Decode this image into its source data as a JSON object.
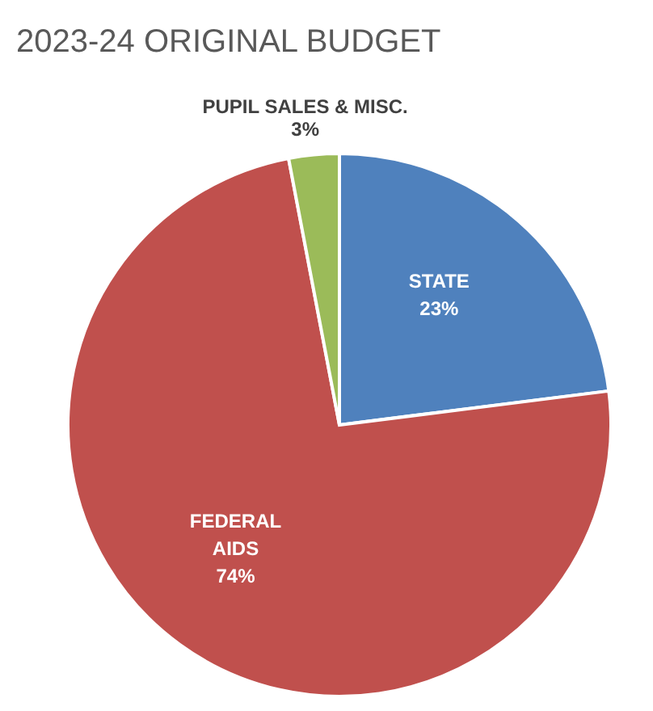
{
  "chart_data": {
    "type": "pie",
    "title": "2023-24 ORIGINAL BUDGET",
    "categories": [
      "STATE",
      "FEDERAL AIDS",
      "PUPIL SALES & MISC."
    ],
    "values": [
      23,
      74,
      3
    ],
    "colors": [
      "#4f81bd",
      "#c0504d",
      "#9bbb59"
    ],
    "value_labels": [
      "23%",
      "74%",
      "3%"
    ]
  }
}
